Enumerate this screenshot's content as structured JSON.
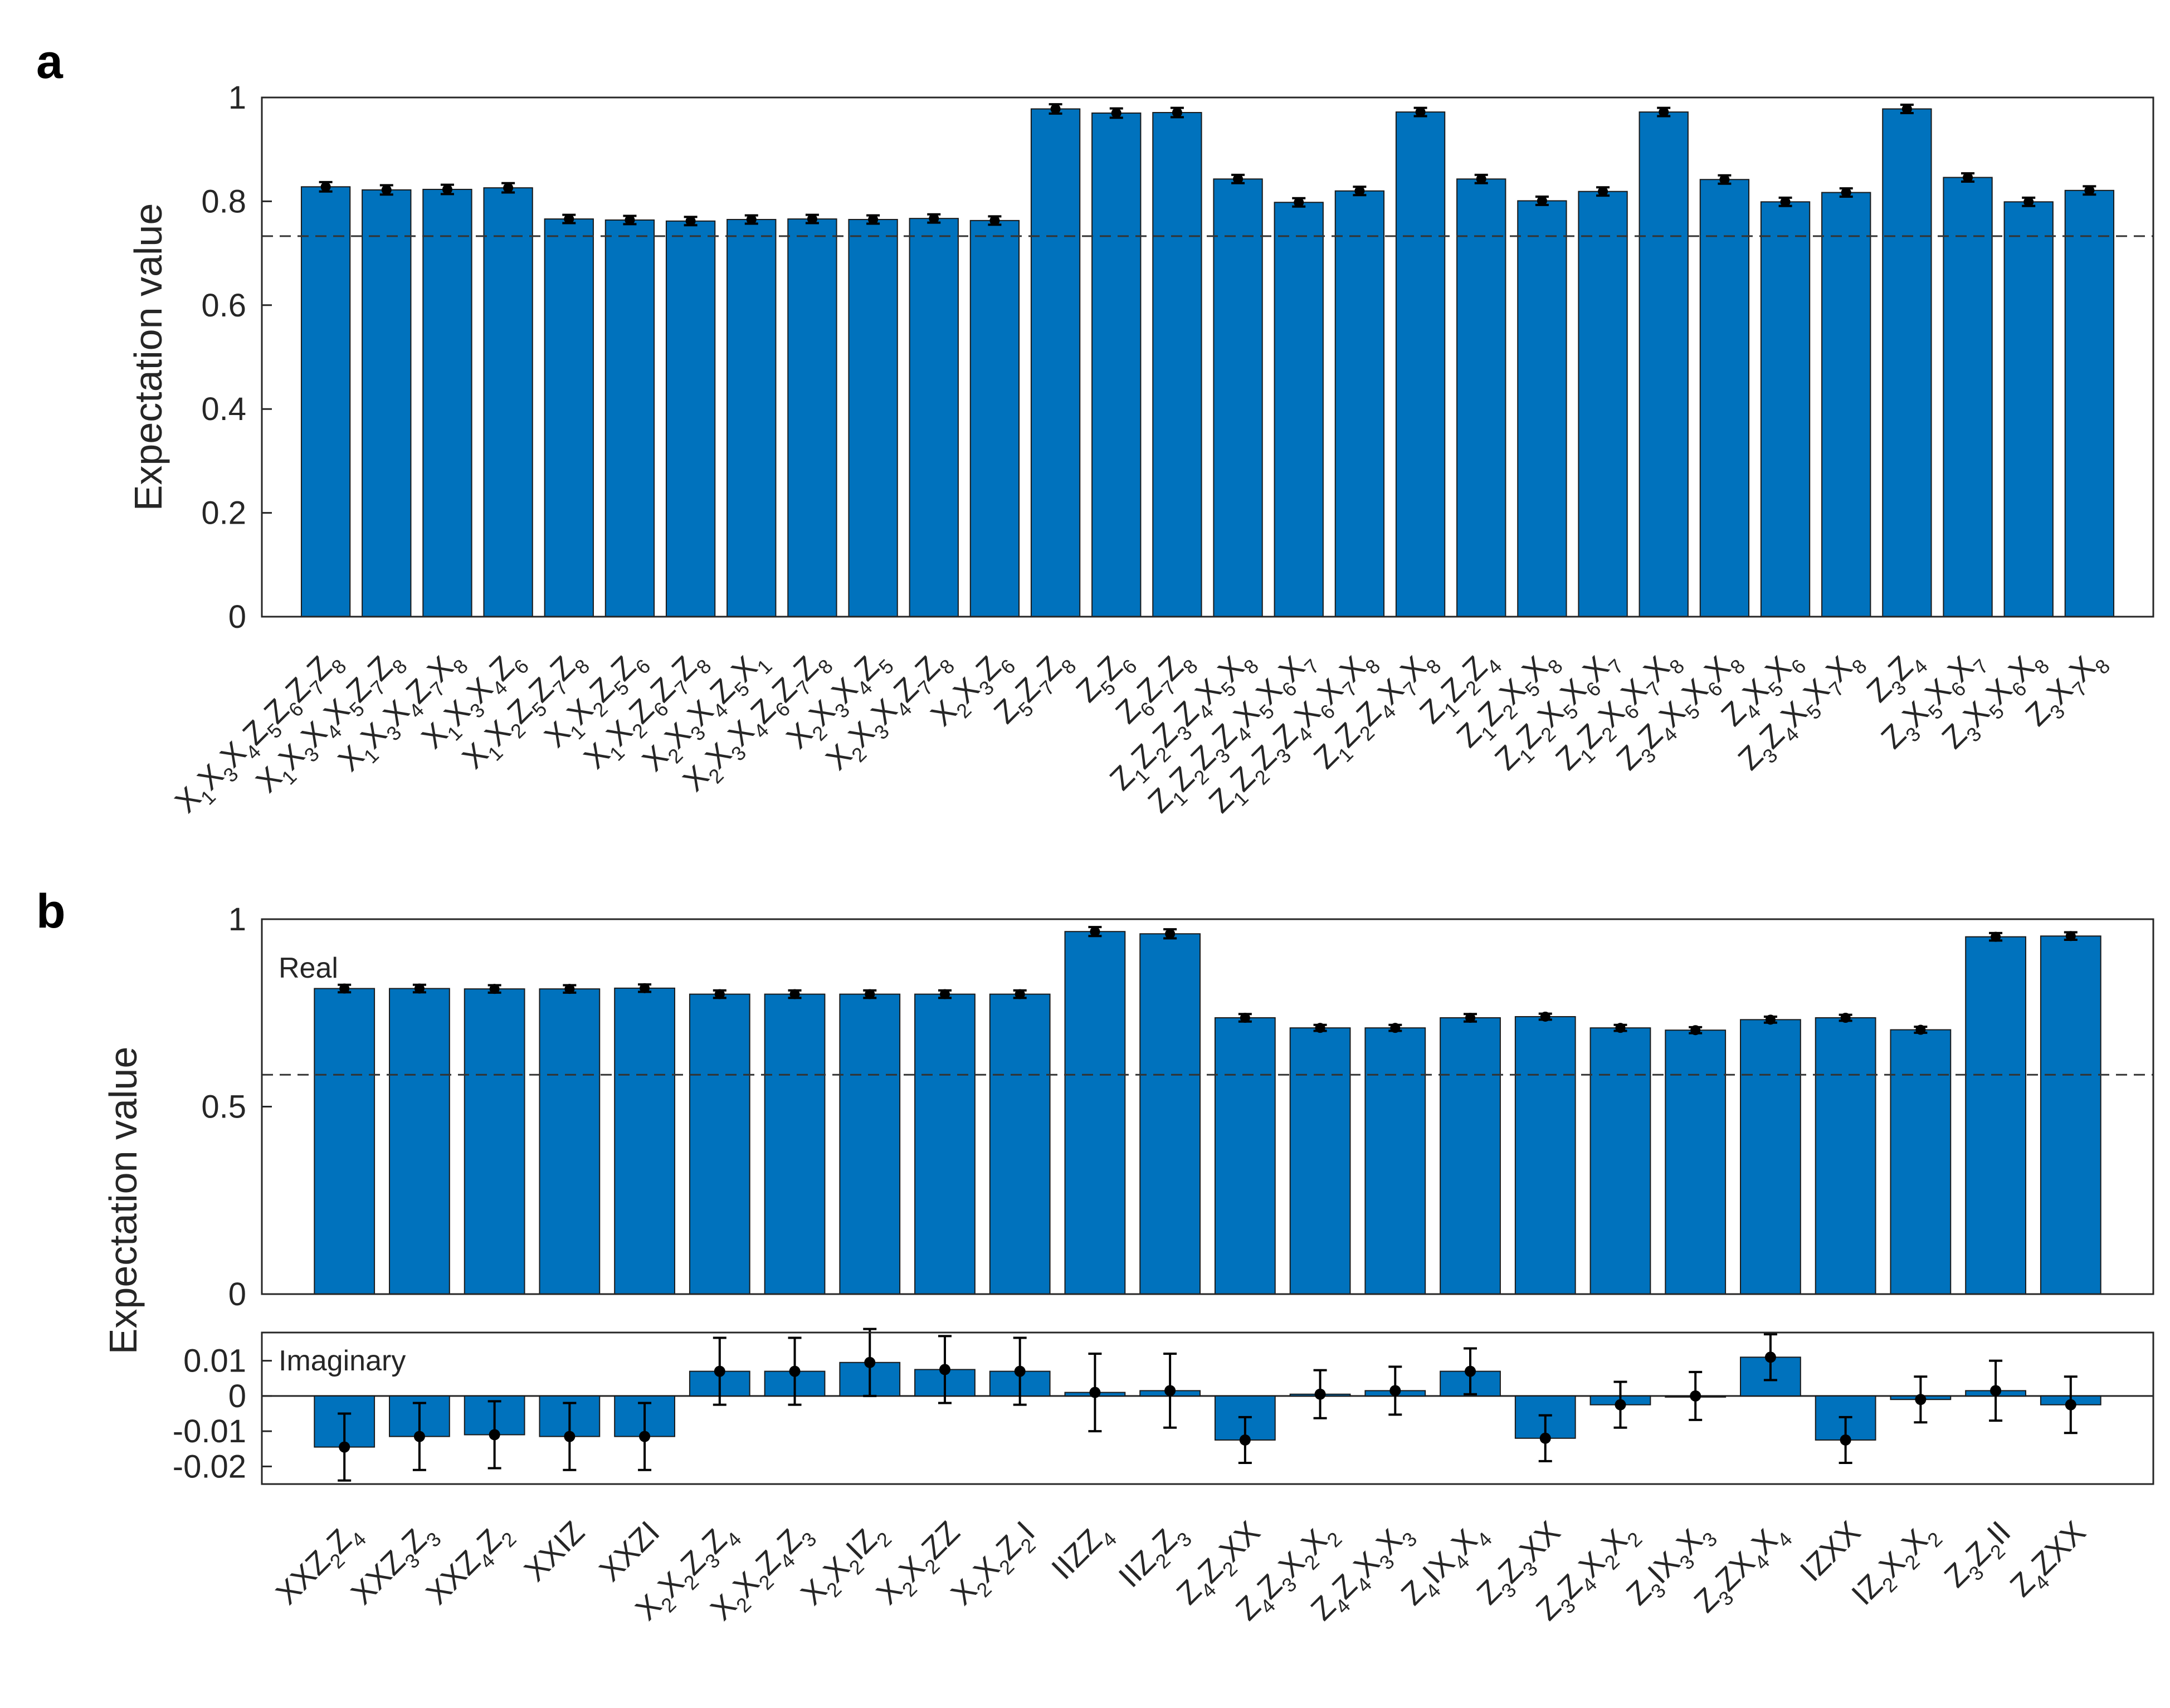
{
  "panel_letters": [
    "a",
    "b"
  ],
  "colors": {
    "bar": "#0072BD",
    "axis": "#262626",
    "marker": "#000000"
  },
  "chart_data": [
    {
      "type": "bar",
      "ylabel": "Expectation value",
      "ylim": [
        0,
        1
      ],
      "yticks": [
        "0",
        "0.2",
        "0.4",
        "0.6",
        "0.8",
        "1"
      ],
      "reference_line": 0.733,
      "categories": [
        [
          [
            "X",
            "1"
          ],
          [
            "X",
            "3"
          ],
          [
            "X",
            "4"
          ],
          [
            "Z",
            "5"
          ],
          [
            "Z",
            "6"
          ],
          [
            "Z",
            "7"
          ],
          [
            "Z",
            "8"
          ]
        ],
        [
          [
            "X",
            "1"
          ],
          [
            "X",
            "3"
          ],
          [
            "X",
            "4"
          ],
          [
            "X",
            "5"
          ],
          [
            "Z",
            "7"
          ],
          [
            "Z",
            "8"
          ]
        ],
        [
          [
            "X",
            "1"
          ],
          [
            "X",
            "3"
          ],
          [
            "X",
            "4"
          ],
          [
            "Z",
            "7"
          ],
          [
            "X",
            "8"
          ]
        ],
        [
          [
            "X",
            "1"
          ],
          [
            "X",
            "3"
          ],
          [
            "X",
            "4"
          ],
          [
            "Z",
            "6"
          ]
        ],
        [
          [
            "X",
            "1"
          ],
          [
            "X",
            "2"
          ],
          [
            "Z",
            "5"
          ],
          [
            "Z",
            "7"
          ],
          [
            "Z",
            "8"
          ]
        ],
        [
          [
            "X",
            "1"
          ],
          [
            "X",
            "2"
          ],
          [
            "Z",
            "5"
          ],
          [
            "Z",
            "6"
          ]
        ],
        [
          [
            "X",
            "1"
          ],
          [
            "X",
            "2"
          ],
          [
            "Z",
            "6"
          ],
          [
            "Z",
            "7"
          ],
          [
            "Z",
            "8"
          ]
        ],
        [
          [
            "X",
            "2"
          ],
          [
            "X",
            "3"
          ],
          [
            "X",
            "4"
          ],
          [
            "Z",
            "5"
          ],
          [
            "X",
            "1"
          ]
        ],
        [
          [
            "X",
            "2"
          ],
          [
            "X",
            "3"
          ],
          [
            "X",
            "4"
          ],
          [
            "Z",
            "6"
          ],
          [
            "Z",
            "7"
          ],
          [
            "Z",
            "8"
          ]
        ],
        [
          [
            "X",
            "2"
          ],
          [
            "X",
            "3"
          ],
          [
            "X",
            "4"
          ],
          [
            "Z",
            "5"
          ]
        ],
        [
          [
            "X",
            "2"
          ],
          [
            "X",
            "3"
          ],
          [
            "X",
            "4"
          ],
          [
            "Z",
            "7"
          ],
          [
            "Z",
            "8"
          ]
        ],
        [
          [
            "X",
            "2"
          ],
          [
            "X",
            "3"
          ],
          [
            "Z",
            "6"
          ]
        ],
        [
          [
            "Z",
            "5"
          ],
          [
            "Z",
            "7"
          ],
          [
            "Z",
            "8"
          ]
        ],
        [
          [
            "Z",
            "5"
          ],
          [
            "Z",
            "6"
          ]
        ],
        [
          [
            "Z",
            "6"
          ],
          [
            "Z",
            "7"
          ],
          [
            "Z",
            "8"
          ]
        ],
        [
          [
            "Z",
            "1"
          ],
          [
            "Z",
            "2"
          ],
          [
            "Z",
            "3"
          ],
          [
            "Z",
            "4"
          ],
          [
            "X",
            "5"
          ],
          [
            "X",
            "8"
          ]
        ],
        [
          [
            "Z",
            "1"
          ],
          [
            "Z",
            "2"
          ],
          [
            "Z",
            "3"
          ],
          [
            "Z",
            "4"
          ],
          [
            "X",
            "5"
          ],
          [
            "X",
            "6"
          ],
          [
            "X",
            "7"
          ]
        ],
        [
          [
            "Z",
            "1"
          ],
          [
            "Z",
            "2"
          ],
          [
            "Z",
            "3"
          ],
          [
            "Z",
            "4"
          ],
          [
            "X",
            "6"
          ],
          [
            "X",
            "7"
          ],
          [
            "X",
            "8"
          ]
        ],
        [
          [
            "Z",
            "1"
          ],
          [
            "Z",
            "2"
          ],
          [
            "Z",
            "4"
          ],
          [
            "X",
            "7"
          ],
          [
            "X",
            "8"
          ]
        ],
        [
          [
            "Z",
            "1"
          ],
          [
            "Z",
            "2"
          ],
          [
            "Z",
            "4"
          ]
        ],
        [
          [
            "Z",
            "1"
          ],
          [
            "Z",
            "2"
          ],
          [
            "X",
            "5"
          ],
          [
            "X",
            "8"
          ]
        ],
        [
          [
            "Z",
            "1"
          ],
          [
            "Z",
            "2"
          ],
          [
            "X",
            "5"
          ],
          [
            "X",
            "6"
          ],
          [
            "X",
            "7"
          ]
        ],
        [
          [
            "Z",
            "1"
          ],
          [
            "Z",
            "2"
          ],
          [
            "X",
            "6"
          ],
          [
            "X",
            "7"
          ],
          [
            "X",
            "8"
          ]
        ],
        [
          [
            "Z",
            "3"
          ],
          [
            "Z",
            "4"
          ],
          [
            "X",
            "5"
          ],
          [
            "X",
            "6"
          ],
          [
            "X",
            "8"
          ]
        ],
        [
          [
            "Z",
            "4"
          ],
          [
            "X",
            "5"
          ],
          [
            "X",
            "6"
          ]
        ],
        [
          [
            "Z",
            "3"
          ],
          [
            "Z",
            "4"
          ],
          [
            "X",
            "5"
          ],
          [
            "X",
            "7"
          ],
          [
            "X",
            "8"
          ]
        ],
        [
          [
            "Z",
            "3"
          ],
          [
            "Z",
            "4"
          ]
        ],
        [
          [
            "Z",
            "3"
          ],
          [
            "X",
            "5"
          ],
          [
            "X",
            "6"
          ],
          [
            "X",
            "7"
          ]
        ],
        [
          [
            "Z",
            "3"
          ],
          [
            "X",
            "5"
          ],
          [
            "X",
            "6"
          ],
          [
            "X",
            "8"
          ]
        ],
        [
          [
            "Z",
            "3"
          ],
          [
            "X",
            "7"
          ],
          [
            "X",
            "8"
          ]
        ]
      ],
      "values": [
        0.828,
        0.822,
        0.823,
        0.826,
        0.766,
        0.764,
        0.762,
        0.765,
        0.766,
        0.765,
        0.767,
        0.763,
        0.978,
        0.97,
        0.971,
        0.843,
        0.798,
        0.82,
        0.972,
        0.843,
        0.801,
        0.819,
        0.972,
        0.842,
        0.799,
        0.817,
        0.978,
        0.846,
        0.799,
        0.821
      ],
      "errors": [
        0.009,
        0.009,
        0.009,
        0.009,
        0.008,
        0.008,
        0.008,
        0.008,
        0.008,
        0.008,
        0.008,
        0.008,
        0.009,
        0.009,
        0.009,
        0.008,
        0.008,
        0.008,
        0.008,
        0.008,
        0.008,
        0.008,
        0.008,
        0.008,
        0.008,
        0.008,
        0.008,
        0.008,
        0.008,
        0.008
      ]
    },
    {
      "type": "bar",
      "ylabel": "Expectation value",
      "annotation_real": "Real",
      "annotation_imag": "Imaginary",
      "ylim_real": [
        0,
        1
      ],
      "yticks_real": [
        "0",
        "0.5",
        "1"
      ],
      "ylim_imag": [
        -0.025,
        0.018
      ],
      "yticks_imag": [
        "-0.02",
        "-0.01",
        "0",
        "0.01"
      ],
      "reference_line": 0.585,
      "categories": [
        [
          [
            "XXZ",
            ""
          ],
          [
            "",
            "2"
          ],
          [
            "Z",
            "4"
          ]
        ],
        [
          [
            "XXZ",
            ""
          ],
          [
            "",
            "3"
          ],
          [
            "Z",
            "3"
          ]
        ],
        [
          [
            "XXZ",
            ""
          ],
          [
            "",
            "4"
          ],
          [
            "Z",
            "2"
          ]
        ],
        [
          [
            "XXIZ",
            ""
          ]
        ],
        [
          [
            "XXZI",
            ""
          ]
        ],
        [
          [
            "X",
            ""
          ],
          [
            "",
            "2"
          ],
          [
            "X",
            "2"
          ],
          [
            "Z",
            "3"
          ],
          [
            "Z",
            "4"
          ]
        ],
        [
          [
            "X",
            ""
          ],
          [
            "",
            "2"
          ],
          [
            "X",
            "2"
          ],
          [
            "Z",
            "4"
          ],
          [
            "Z",
            "3"
          ]
        ],
        [
          [
            "X",
            ""
          ],
          [
            "",
            "2"
          ],
          [
            "X",
            "2"
          ],
          [
            "IZ",
            "2"
          ]
        ],
        [
          [
            "X",
            ""
          ],
          [
            "",
            "2"
          ],
          [
            "X",
            "2"
          ],
          [
            "ZZ",
            ""
          ]
        ],
        [
          [
            "X",
            ""
          ],
          [
            "",
            "2"
          ],
          [
            "X",
            "2"
          ],
          [
            "Z",
            "2"
          ],
          [
            "I",
            ""
          ]
        ],
        [
          [
            "IIZZ",
            "4"
          ]
        ],
        [
          [
            "IIZ",
            ""
          ],
          [
            "",
            "2"
          ],
          [
            "Z",
            "3"
          ]
        ],
        [
          [
            "Z",
            "4"
          ],
          [
            "Z",
            "2"
          ],
          [
            "XX",
            ""
          ]
        ],
        [
          [
            "Z",
            "4"
          ],
          [
            "Z",
            "3"
          ],
          [
            "X",
            "2"
          ],
          [
            "X",
            "2"
          ]
        ],
        [
          [
            "Z",
            "4"
          ],
          [
            "Z",
            "4"
          ],
          [
            "X",
            "3"
          ],
          [
            "X",
            "3"
          ]
        ],
        [
          [
            "Z",
            "4"
          ],
          [
            "IX",
            "4"
          ],
          [
            "X",
            "4"
          ]
        ],
        [
          [
            "Z",
            "3"
          ],
          [
            "Z",
            "3"
          ],
          [
            "XX",
            ""
          ]
        ],
        [
          [
            "Z",
            "3"
          ],
          [
            "Z",
            "4"
          ],
          [
            "X",
            "2"
          ],
          [
            "X",
            "2"
          ]
        ],
        [
          [
            "Z",
            "3"
          ],
          [
            "IX",
            "3"
          ],
          [
            "X",
            "3"
          ]
        ],
        [
          [
            "Z",
            "3"
          ],
          [
            "ZX",
            "4"
          ],
          [
            "X",
            "4"
          ]
        ],
        [
          [
            "IZXX",
            ""
          ]
        ],
        [
          [
            "IZ",
            ""
          ],
          [
            "",
            "2"
          ],
          [
            "X",
            "2"
          ],
          [
            "X",
            "2"
          ]
        ],
        [
          [
            "Z",
            "3"
          ],
          [
            "Z",
            "2"
          ],
          [
            "II",
            ""
          ]
        ],
        [
          [
            "Z",
            "4"
          ],
          [
            "ZXX",
            ""
          ]
        ]
      ],
      "real_values": [
        0.815,
        0.815,
        0.814,
        0.814,
        0.816,
        0.8,
        0.8,
        0.8,
        0.8,
        0.8,
        0.967,
        0.961,
        0.737,
        0.71,
        0.71,
        0.737,
        0.74,
        0.71,
        0.704,
        0.732,
        0.737,
        0.705,
        0.953,
        0.955
      ],
      "real_errors": [
        0.01,
        0.01,
        0.01,
        0.01,
        0.01,
        0.01,
        0.01,
        0.01,
        0.01,
        0.01,
        0.012,
        0.012,
        0.01,
        0.008,
        0.008,
        0.01,
        0.008,
        0.008,
        0.008,
        0.008,
        0.008,
        0.008,
        0.01,
        0.01
      ],
      "imag_values": [
        -0.0145,
        -0.0115,
        -0.011,
        -0.0115,
        -0.0115,
        0.007,
        0.007,
        0.0095,
        0.0075,
        0.007,
        0.001,
        0.0015,
        -0.0125,
        0.0005,
        0.0015,
        0.007,
        -0.012,
        -0.0025,
        0.0,
        0.011,
        -0.0125,
        -0.001,
        0.0015,
        -0.0025
      ],
      "imag_errors": [
        0.0095,
        0.0095,
        0.0095,
        0.0095,
        0.0095,
        0.0095,
        0.0095,
        0.0095,
        0.0095,
        0.0095,
        0.011,
        0.0105,
        0.0065,
        0.0068,
        0.0068,
        0.0065,
        0.0065,
        0.0065,
        0.0068,
        0.0065,
        0.0065,
        0.0065,
        0.0085,
        0.008
      ]
    }
  ]
}
